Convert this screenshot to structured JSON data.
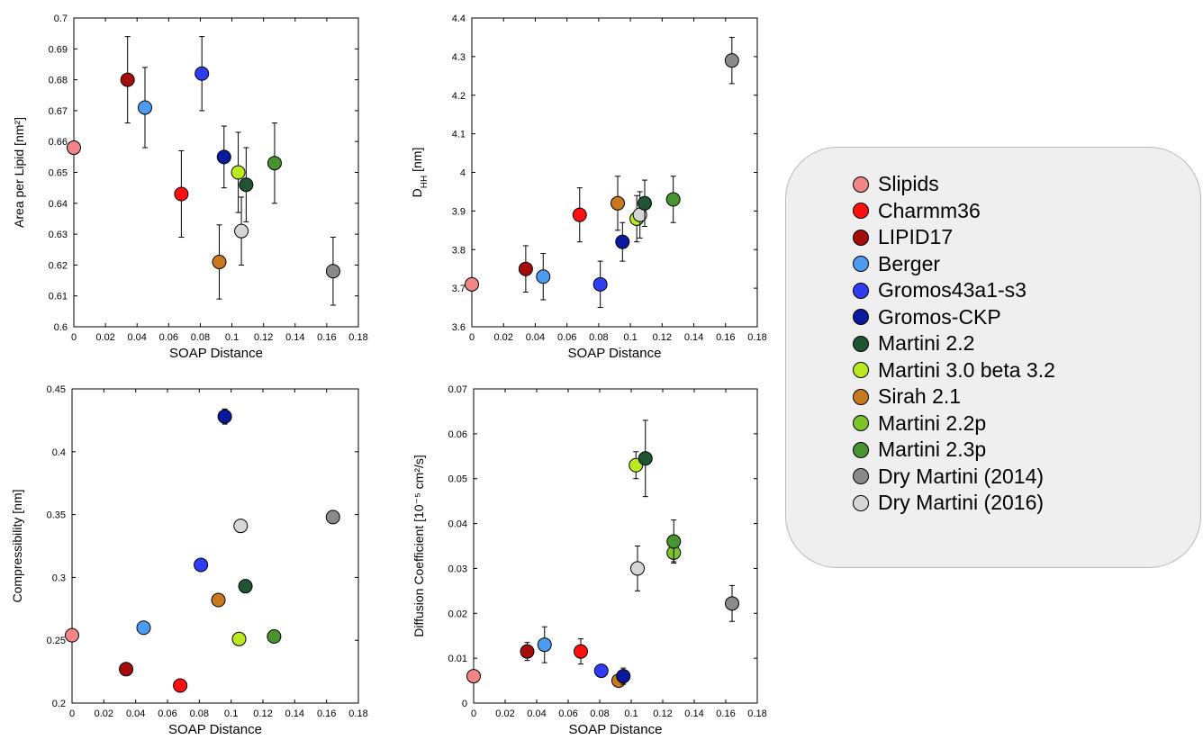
{
  "legend": {
    "items": [
      {
        "label": "Slipids",
        "color": "#f28585"
      },
      {
        "label": "Charmm36",
        "color": "#ff1010"
      },
      {
        "label": "LIPID17",
        "color": "#a50d0d"
      },
      {
        "label": "Berger",
        "color": "#4d9cf3"
      },
      {
        "label": "Gromos43a1-s3",
        "color": "#2f3cf2"
      },
      {
        "label": "Gromos-CKP",
        "color": "#0a1a9e"
      },
      {
        "label": "Martini 2.2",
        "color": "#1f5533"
      },
      {
        "label": "Martini 3.0 beta 3.2",
        "color": "#bce81f"
      },
      {
        "label": "Sirah 2.1",
        "color": "#c8781f"
      },
      {
        "label": "Martini 2.2p",
        "color": "#7cc42a"
      },
      {
        "label": "Martini 2.3p",
        "color": "#4a9331"
      },
      {
        "label": "Dry Martini (2014)",
        "color": "#8a8a8a"
      },
      {
        "label": "Dry Martini (2016)",
        "color": "#d6d6d6"
      }
    ]
  },
  "chart_data": [
    {
      "type": "scatter",
      "xlabel": "SOAP Distance",
      "ylabel": "Area per Lipid [nm²]",
      "xlim": [
        0,
        0.18
      ],
      "ylim": [
        0.6,
        0.7
      ],
      "xticks": [
        "0",
        "0.02",
        "0.04",
        "0.06",
        "0.08",
        "0.1",
        "0.12",
        "0.14",
        "0.16",
        "0.18"
      ],
      "yticks": [
        "0.6",
        "0.61",
        "0.62",
        "0.63",
        "0.64",
        "0.65",
        "0.66",
        "0.67",
        "0.68",
        "0.69",
        "0.7"
      ],
      "points": [
        {
          "series": "Slipids",
          "x": 0.0,
          "y": 0.658
        },
        {
          "series": "LIPID17",
          "x": 0.034,
          "y": 0.68,
          "err": 0.014
        },
        {
          "series": "Berger",
          "x": 0.045,
          "y": 0.671,
          "err": 0.013
        },
        {
          "series": "Charmm36",
          "x": 0.068,
          "y": 0.643,
          "err": 0.014
        },
        {
          "series": "Gromos43a1-s3",
          "x": 0.081,
          "y": 0.682,
          "err": 0.012
        },
        {
          "series": "Sirah 2.1",
          "x": 0.092,
          "y": 0.621,
          "err": 0.012
        },
        {
          "series": "Gromos-CKP",
          "x": 0.095,
          "y": 0.655,
          "err": 0.01
        },
        {
          "series": "Martini 3.0 beta 3.2",
          "x": 0.104,
          "y": 0.65,
          "err": 0.013
        },
        {
          "series": "Dry Martini (2016)",
          "x": 0.106,
          "y": 0.631,
          "err": 0.011
        },
        {
          "series": "Martini 2.2",
          "x": 0.109,
          "y": 0.646,
          "err": 0.012
        },
        {
          "series": "Martini 2.3p",
          "x": 0.127,
          "y": 0.653,
          "err": 0.013
        },
        {
          "series": "Dry Martini (2014)",
          "x": 0.164,
          "y": 0.618,
          "err": 0.011
        }
      ]
    },
    {
      "type": "scatter",
      "xlabel": "SOAP Distance",
      "ylabel": "D",
      "ylabel_sub": "HH",
      "ylabel_suffix": " [nm]",
      "xlim": [
        0,
        0.18
      ],
      "ylim": [
        3.6,
        4.4
      ],
      "xticks": [
        "0",
        "0.02",
        "0.04",
        "0.06",
        "0.08",
        "0.1",
        "0.12",
        "0.14",
        "0.16",
        "0.18"
      ],
      "yticks": [
        "3.6",
        "3.7",
        "3.8",
        "3.9",
        "4",
        "4.1",
        "4.2",
        "4.3",
        "4.4"
      ],
      "points": [
        {
          "series": "Slipids",
          "x": 0.0,
          "y": 3.71
        },
        {
          "series": "LIPID17",
          "x": 0.034,
          "y": 3.75,
          "err": 0.06
        },
        {
          "series": "Berger",
          "x": 0.045,
          "y": 3.73,
          "err": 0.06
        },
        {
          "series": "Charmm36",
          "x": 0.068,
          "y": 3.89,
          "err": 0.07
        },
        {
          "series": "Gromos43a1-s3",
          "x": 0.081,
          "y": 3.71,
          "err": 0.06
        },
        {
          "series": "Sirah 2.1",
          "x": 0.092,
          "y": 3.92,
          "err": 0.07
        },
        {
          "series": "Gromos-CKP",
          "x": 0.095,
          "y": 3.82,
          "err": 0.05
        },
        {
          "series": "Martini 3.0 beta 3.2",
          "x": 0.104,
          "y": 3.88,
          "err": 0.06
        },
        {
          "series": "Dry Martini (2016)",
          "x": 0.106,
          "y": 3.89,
          "err": 0.06
        },
        {
          "series": "Martini 2.2",
          "x": 0.109,
          "y": 3.92,
          "err": 0.06
        },
        {
          "series": "Martini 2.3p",
          "x": 0.127,
          "y": 3.93,
          "err": 0.06
        },
        {
          "series": "Dry Martini (2014)",
          "x": 0.164,
          "y": 4.29,
          "err": 0.06
        }
      ]
    },
    {
      "type": "scatter",
      "xlabel": "SOAP Distance",
      "ylabel": "Compressibility [nm]",
      "xlim": [
        0,
        0.18
      ],
      "ylim": [
        0.2,
        0.45
      ],
      "xticks": [
        "0",
        "0.02",
        "0.04",
        "0.06",
        "0.08",
        "0.1",
        "0.12",
        "0.14",
        "0.16",
        "0.18"
      ],
      "yticks": [
        "0.2",
        "0.25",
        "0.3",
        "0.35",
        "0.4",
        "0.45"
      ],
      "points": [
        {
          "series": "Slipids",
          "x": 0.0,
          "y": 0.254
        },
        {
          "series": "LIPID17",
          "x": 0.034,
          "y": 0.227
        },
        {
          "series": "Berger",
          "x": 0.045,
          "y": 0.26
        },
        {
          "series": "Charmm36",
          "x": 0.068,
          "y": 0.214
        },
        {
          "series": "Gromos43a1-s3",
          "x": 0.081,
          "y": 0.31
        },
        {
          "series": "Sirah 2.1",
          "x": 0.092,
          "y": 0.282
        },
        {
          "series": "Gromos-CKP",
          "x": 0.096,
          "y": 0.428,
          "err": 0.006
        },
        {
          "series": "Martini 3.0 beta 3.2",
          "x": 0.105,
          "y": 0.251
        },
        {
          "series": "Dry Martini (2016)",
          "x": 0.106,
          "y": 0.341,
          "err": 0.005
        },
        {
          "series": "Martini 2.2",
          "x": 0.109,
          "y": 0.293,
          "err": 0.005
        },
        {
          "series": "Martini 2.3p",
          "x": 0.127,
          "y": 0.253
        },
        {
          "series": "Dry Martini (2014)",
          "x": 0.164,
          "y": 0.348,
          "err": 0.005
        }
      ]
    },
    {
      "type": "scatter",
      "xlabel": "SOAP Distance",
      "ylabel": "Diffusion Coefficient [10⁻⁵ cm²/s]",
      "xlim": [
        0,
        0.18
      ],
      "ylim": [
        0,
        0.07
      ],
      "xticks": [
        "0",
        "0.02",
        "0.04",
        "0.06",
        "0.08",
        "0.1",
        "0.12",
        "0.14",
        "0.16",
        "0.18"
      ],
      "yticks": [
        "0",
        "0.01",
        "0.02",
        "0.03",
        "0.04",
        "0.05",
        "0.06",
        "0.07"
      ],
      "points": [
        {
          "series": "Slipids",
          "x": 0.0,
          "y": 0.006
        },
        {
          "series": "LIPID17",
          "x": 0.034,
          "y": 0.0115,
          "err": 0.002
        },
        {
          "series": "Berger",
          "x": 0.045,
          "y": 0.013,
          "err": 0.004
        },
        {
          "series": "Charmm36",
          "x": 0.068,
          "y": 0.0115,
          "err": 0.0028
        },
        {
          "series": "Gromos43a1-s3",
          "x": 0.081,
          "y": 0.0072
        },
        {
          "series": "Sirah 2.1",
          "x": 0.092,
          "y": 0.005
        },
        {
          "series": "Gromos-CKP",
          "x": 0.095,
          "y": 0.006,
          "err": 0.0018
        },
        {
          "series": "Martini 3.0 beta 3.2",
          "x": 0.103,
          "y": 0.053,
          "err": 0.003
        },
        {
          "series": "Dry Martini (2016)",
          "x": 0.104,
          "y": 0.03,
          "err": 0.005
        },
        {
          "series": "Martini 2.2",
          "x": 0.109,
          "y": 0.0545,
          "err": 0.0085
        },
        {
          "series": "Martini 2.2p",
          "x": 0.127,
          "y": 0.0335,
          "err": 0.002
        },
        {
          "series": "Martini 2.3p",
          "x": 0.127,
          "y": 0.036,
          "err": 0.0048
        },
        {
          "series": "Dry Martini (2014)",
          "x": 0.164,
          "y": 0.0222,
          "err": 0.004
        }
      ]
    }
  ]
}
